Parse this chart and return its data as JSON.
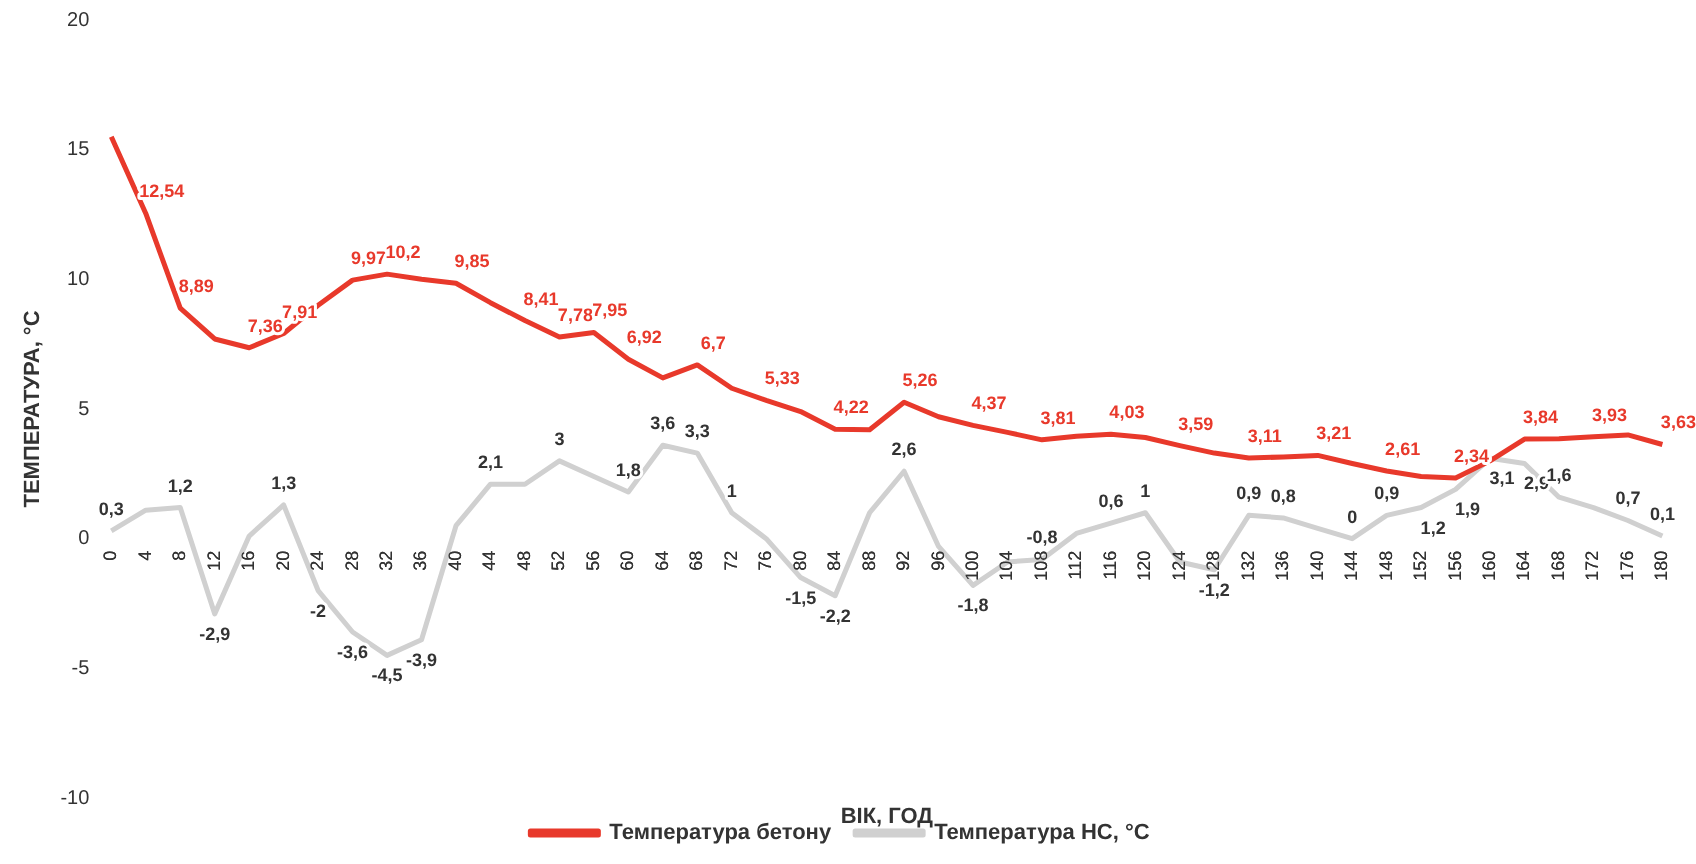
{
  "chart_data": {
    "type": "line",
    "xlabel": "ВІК, ГОД",
    "ylabel": "ТЕМПЕРАТУРА, °C",
    "categories": [
      "0",
      "4",
      "8",
      "12",
      "16",
      "20",
      "24",
      "28",
      "32",
      "36",
      "40",
      "44",
      "48",
      "52",
      "56",
      "60",
      "64",
      "68",
      "72",
      "76",
      "80",
      "84",
      "88",
      "92",
      "96",
      "100",
      "104",
      "108",
      "112",
      "116",
      "120",
      "124",
      "128",
      "132",
      "136",
      "140",
      "144",
      "148",
      "152",
      "156",
      "160",
      "164",
      "168",
      "172",
      "176",
      "180"
    ],
    "series": [
      {
        "name": "Температура бетону",
        "color": "#e8392b",
        "values": [
          15.5,
          12.54,
          8.89,
          7.7,
          7.36,
          7.91,
          9.0,
          9.97,
          10.2,
          10.0,
          9.85,
          9.1,
          8.41,
          7.78,
          7.95,
          6.92,
          6.2,
          6.7,
          5.8,
          5.33,
          4.9,
          4.22,
          4.2,
          5.26,
          4.7,
          4.37,
          4.1,
          3.81,
          3.95,
          4.03,
          3.9,
          3.59,
          3.3,
          3.11,
          3.15,
          3.21,
          2.9,
          2.61,
          2.4,
          2.34,
          3.0,
          3.84,
          3.85,
          3.93,
          4.0,
          3.63
        ],
        "value_labels": [
          null,
          "12,54",
          "8,89",
          null,
          "7,36",
          "7,91",
          null,
          "9,97",
          "10,2",
          null,
          "9,85",
          null,
          "8,41",
          "7,78",
          "7,95",
          "6,92",
          null,
          "6,7",
          null,
          "5,33",
          null,
          "4,22",
          null,
          "5,26",
          null,
          "4,37",
          null,
          "3,81",
          null,
          "4,03",
          null,
          "3,59",
          null,
          "3,11",
          null,
          "3,21",
          null,
          "2,61",
          null,
          "2,34",
          null,
          "3,84",
          null,
          "3,93",
          null,
          "3,63"
        ]
      },
      {
        "name": "Температура НС, °C",
        "color": "#d0d0d0",
        "values": [
          0.3,
          1.1,
          1.2,
          -2.9,
          0.1,
          1.3,
          -2,
          -3.6,
          -4.5,
          -3.9,
          0.5,
          2.1,
          2.1,
          3,
          2.4,
          1.8,
          3.6,
          3.3,
          1,
          0.0,
          -1.5,
          -2.2,
          1.0,
          2.6,
          -0.3,
          -1.8,
          -0.9,
          -0.8,
          0.2,
          0.6,
          1,
          -0.9,
          -1.2,
          0.9,
          0.8,
          0.4,
          0,
          0.9,
          1.2,
          1.9,
          3.1,
          2.9,
          1.6,
          1.2,
          0.7,
          0.1
        ],
        "value_labels": [
          "0,3",
          null,
          "1,2",
          "-2,9",
          null,
          "1,3",
          "-2",
          "-3,6",
          "-4,5",
          "-3,9",
          null,
          "2,1",
          null,
          "3",
          null,
          "1,8",
          "3,6",
          "3,3",
          "1",
          null,
          "-1,5",
          "-2,2",
          null,
          "2,6",
          null,
          "-1,8",
          null,
          "-0,8",
          null,
          "0,6",
          "1",
          null,
          "-1,2",
          "0,9",
          "0,8",
          null,
          "0",
          "0,9",
          "1,2",
          "1,9",
          "3,1",
          "2,9",
          "1,6",
          null,
          "0,7",
          "0,1"
        ]
      }
    ],
    "ylim": [
      -10,
      20
    ],
    "yticks": [
      -10,
      -5,
      0,
      5,
      10,
      15,
      20
    ],
    "grid": false,
    "legend": "bottom",
    "marker": "none",
    "line_style": "solid"
  }
}
